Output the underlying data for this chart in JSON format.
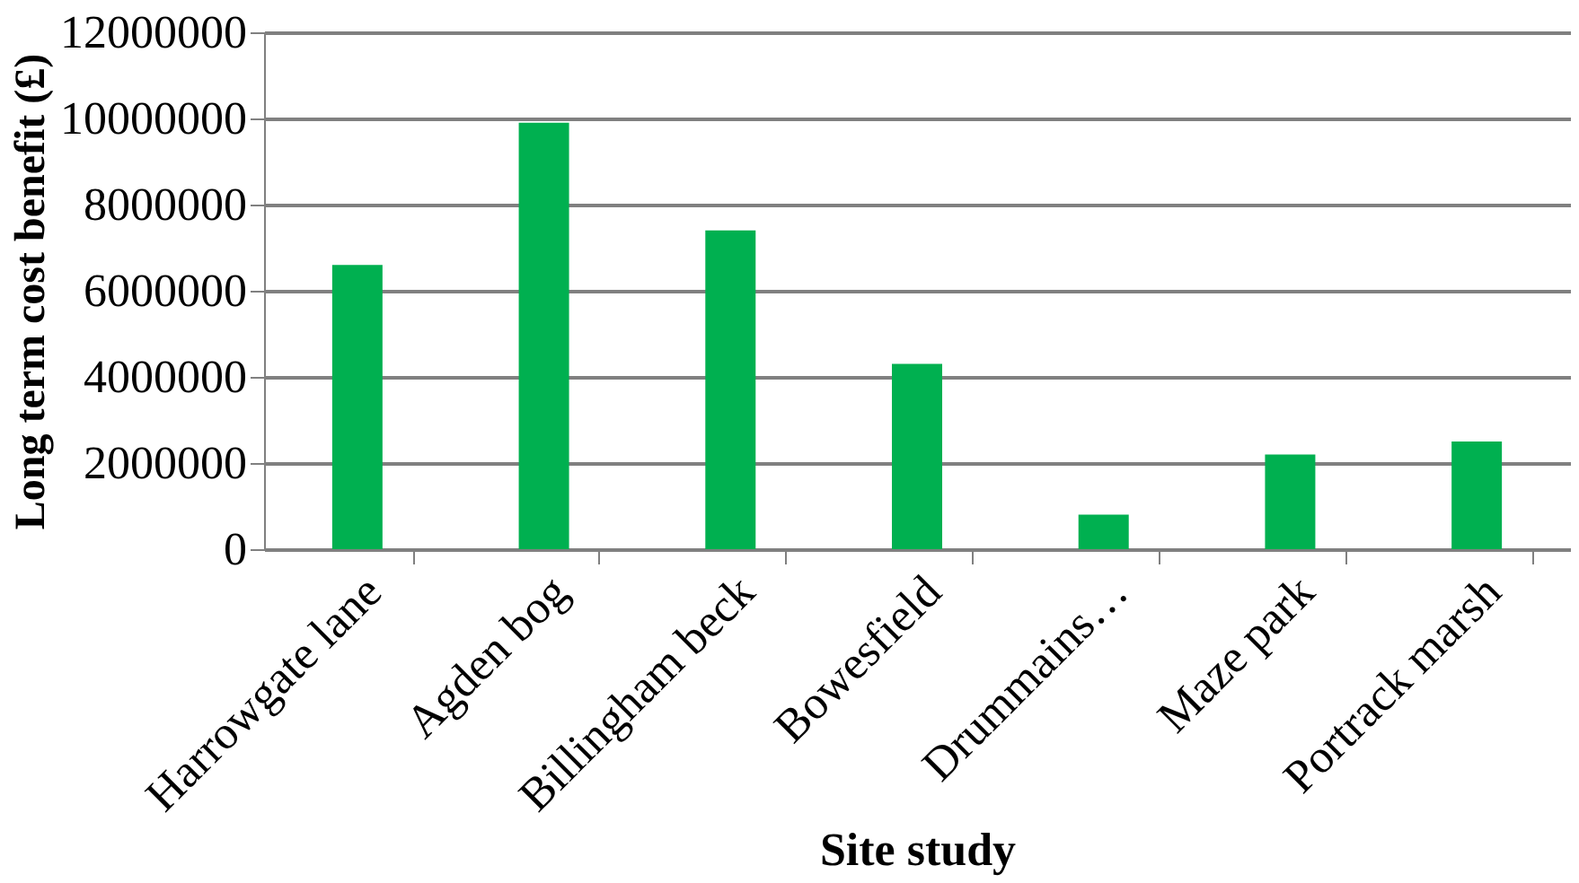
{
  "chart_data": {
    "type": "bar",
    "xlabel": "Site study",
    "ylabel": "Long term cost benefit (£)",
    "categories": [
      "Harrowgate lane",
      "Agden bog",
      "Billingham beck",
      "Bowesfield",
      "Drummains…",
      "Maze park",
      "Portrack marsh"
    ],
    "values": [
      6600000,
      9900000,
      7400000,
      4300000,
      800000,
      2200000,
      2500000
    ],
    "color": "#00b050",
    "ylim": [
      0,
      12000000
    ],
    "yticks": [
      0,
      2000000,
      4000000,
      6000000,
      8000000,
      10000000,
      12000000
    ],
    "grid": "y"
  }
}
